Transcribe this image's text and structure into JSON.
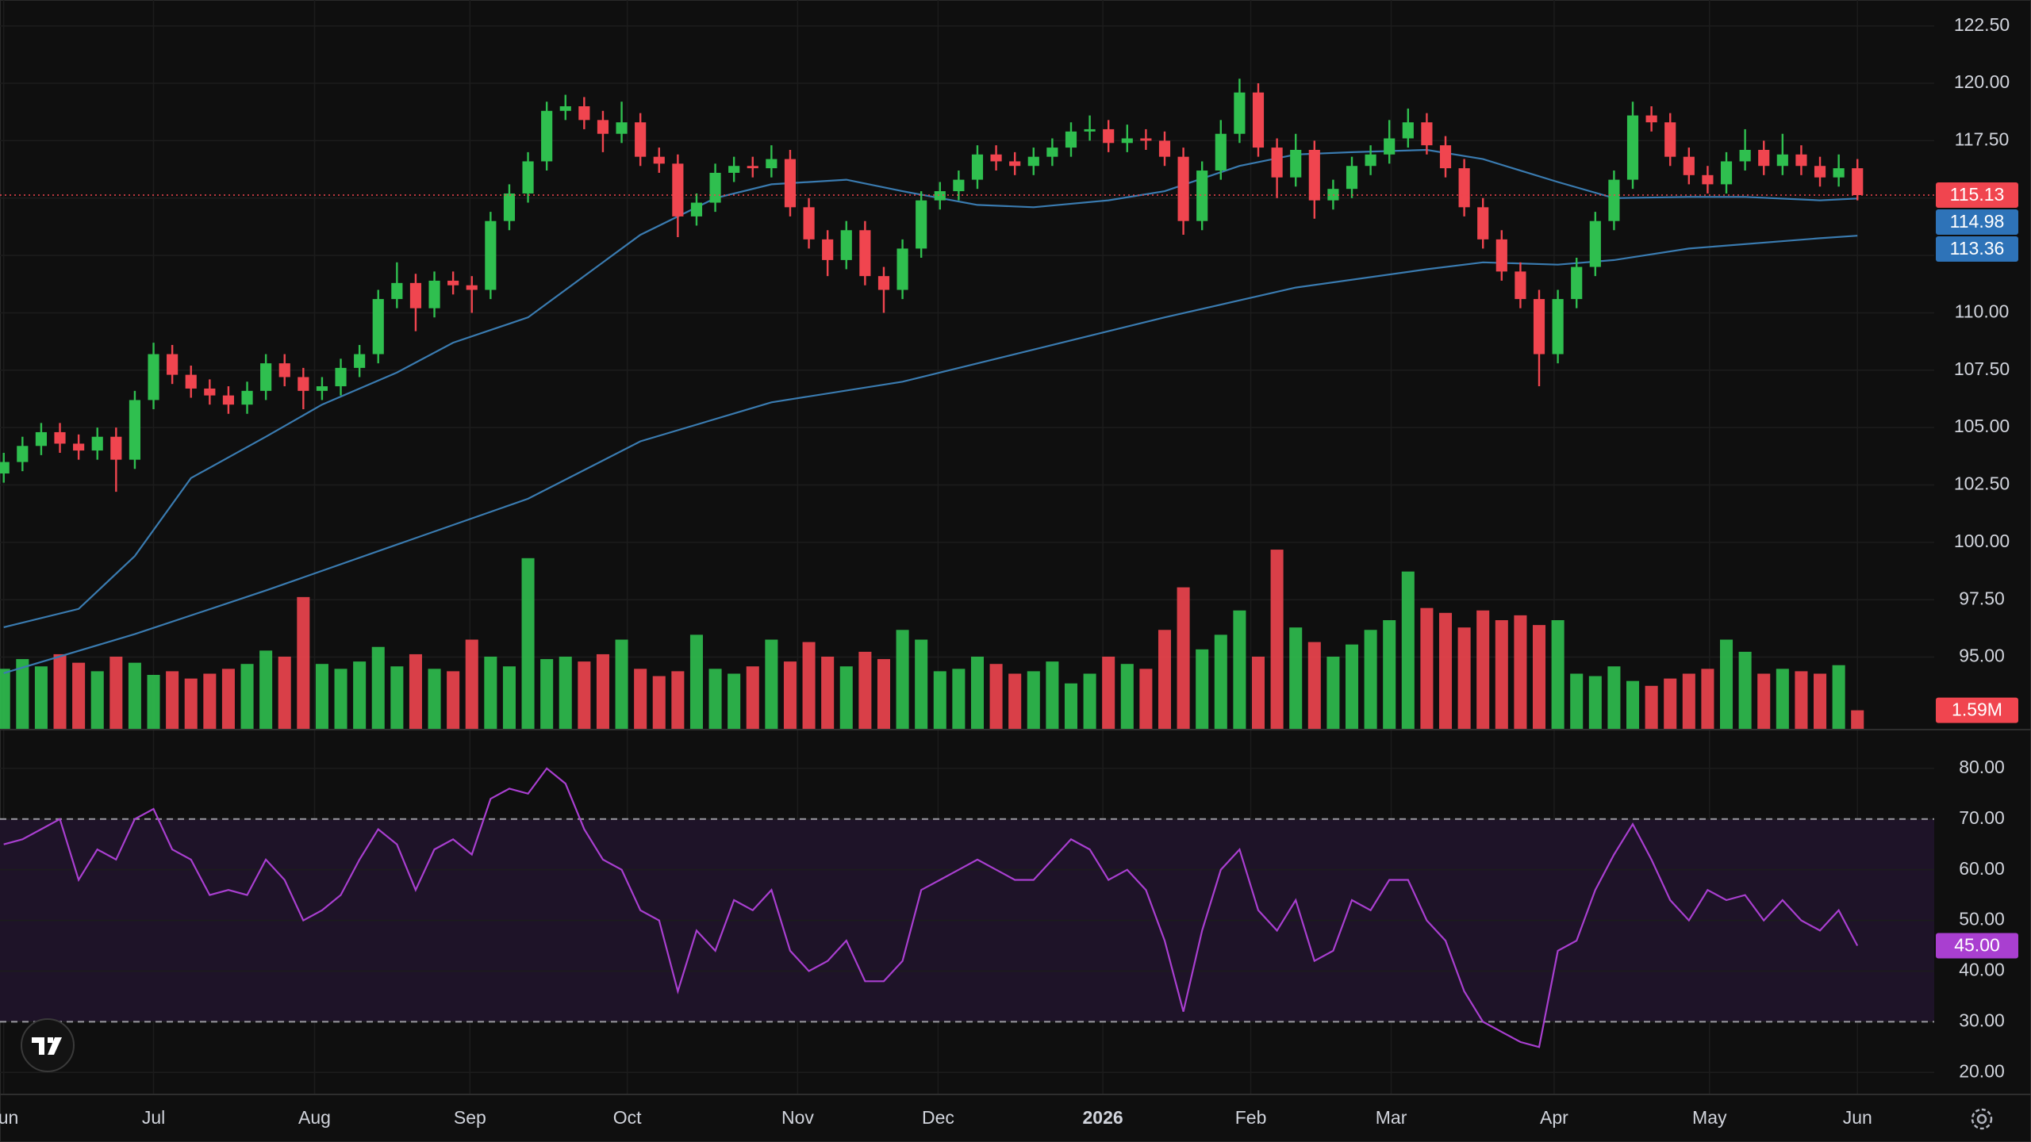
{
  "chart_data": {
    "type": "candlestick",
    "grid": true,
    "up_color": "#2fbf4f",
    "down_color": "#f0454f",
    "xlim": [
      -0.2,
      103.1
    ],
    "xticks": [
      {
        "value": 0,
        "label": "Jun"
      },
      {
        "value": 8.0,
        "label": "Jul"
      },
      {
        "value": 16.6,
        "label": "Aug"
      },
      {
        "value": 24.9,
        "label": "Sep"
      },
      {
        "value": 33.3,
        "label": "Oct"
      },
      {
        "value": 42.4,
        "label": "Nov"
      },
      {
        "value": 49.9,
        "label": "Dec"
      },
      {
        "value": 58.7,
        "label": "2026"
      },
      {
        "value": 66.6,
        "label": "Feb"
      },
      {
        "value": 74.1,
        "label": "Mar"
      },
      {
        "value": 82.8,
        "label": "Apr"
      },
      {
        "value": 91.1,
        "label": "May"
      },
      {
        "value": 99.0,
        "label": "Jun"
      }
    ],
    "ylim": [
      91.84,
      123.63
    ],
    "yticks": [
      {
        "value": 95,
        "label": "95.00"
      },
      {
        "value": 97.5,
        "label": "97.50"
      },
      {
        "value": 100,
        "label": "100.00"
      },
      {
        "value": 102.5,
        "label": "102.50"
      },
      {
        "value": 105,
        "label": "105.00"
      },
      {
        "value": 107.5,
        "label": "107.50"
      },
      {
        "value": 110,
        "label": "110.00"
      },
      {
        "value": 112.5,
        "label": "112.50"
      },
      {
        "value": 115,
        "label": "115.00"
      },
      {
        "value": 117.5,
        "label": "117.50"
      },
      {
        "value": 120,
        "label": "120.00"
      },
      {
        "value": 122.5,
        "label": "122.50"
      }
    ],
    "last_price_line": true,
    "candles": [
      [
        103.0,
        103.9,
        102.6,
        103.5
      ],
      [
        103.5,
        104.6,
        103.1,
        104.2
      ],
      [
        104.2,
        105.2,
        103.8,
        104.8
      ],
      [
        104.8,
        105.2,
        103.9,
        104.3
      ],
      [
        104.3,
        104.7,
        103.6,
        104.0
      ],
      [
        104.0,
        105.0,
        103.6,
        104.6
      ],
      [
        104.6,
        105.0,
        102.2,
        103.6
      ],
      [
        103.6,
        106.6,
        103.2,
        106.2
      ],
      [
        106.2,
        108.7,
        105.8,
        108.2
      ],
      [
        108.2,
        108.6,
        106.9,
        107.3
      ],
      [
        107.3,
        107.7,
        106.3,
        106.7
      ],
      [
        106.7,
        107.1,
        106.0,
        106.4
      ],
      [
        106.4,
        106.8,
        105.6,
        106.0
      ],
      [
        106.0,
        107.0,
        105.6,
        106.6
      ],
      [
        106.6,
        108.2,
        106.2,
        107.8
      ],
      [
        107.8,
        108.2,
        106.8,
        107.2
      ],
      [
        107.2,
        107.6,
        105.8,
        106.6
      ],
      [
        106.6,
        107.2,
        106.2,
        106.8
      ],
      [
        106.8,
        108.0,
        106.4,
        107.6
      ],
      [
        107.6,
        108.6,
        107.2,
        108.2
      ],
      [
        108.2,
        111.0,
        107.8,
        110.6
      ],
      [
        110.6,
        112.2,
        110.2,
        111.3
      ],
      [
        111.3,
        111.7,
        109.2,
        110.2
      ],
      [
        110.2,
        111.8,
        109.8,
        111.4
      ],
      [
        111.4,
        111.8,
        110.8,
        111.2
      ],
      [
        111.2,
        111.6,
        110.0,
        111.0
      ],
      [
        111.0,
        114.4,
        110.6,
        114.0
      ],
      [
        114.0,
        115.6,
        113.6,
        115.2
      ],
      [
        115.2,
        117.0,
        114.8,
        116.6
      ],
      [
        116.6,
        119.2,
        116.2,
        118.8
      ],
      [
        118.8,
        119.5,
        118.4,
        119.0
      ],
      [
        119.0,
        119.4,
        118.0,
        118.4
      ],
      [
        118.4,
        118.8,
        117.0,
        117.8
      ],
      [
        117.8,
        119.2,
        117.4,
        118.3
      ],
      [
        118.3,
        118.7,
        116.4,
        116.8
      ],
      [
        116.8,
        117.2,
        116.1,
        116.5
      ],
      [
        116.5,
        116.9,
        113.3,
        114.2
      ],
      [
        114.2,
        115.2,
        113.8,
        114.8
      ],
      [
        114.8,
        116.5,
        114.4,
        116.1
      ],
      [
        116.1,
        116.8,
        115.7,
        116.4
      ],
      [
        116.4,
        116.8,
        115.9,
        116.3
      ],
      [
        116.3,
        117.3,
        115.9,
        116.7
      ],
      [
        116.7,
        117.1,
        114.2,
        114.6
      ],
      [
        114.6,
        115.0,
        112.8,
        113.2
      ],
      [
        113.2,
        113.6,
        111.6,
        112.3
      ],
      [
        112.3,
        114.0,
        111.9,
        113.6
      ],
      [
        113.6,
        114.0,
        111.2,
        111.6
      ],
      [
        111.6,
        112.0,
        110.0,
        111.0
      ],
      [
        111.0,
        113.2,
        110.6,
        112.8
      ],
      [
        112.8,
        115.3,
        112.4,
        114.9
      ],
      [
        114.9,
        115.7,
        114.5,
        115.3
      ],
      [
        115.3,
        116.2,
        114.9,
        115.8
      ],
      [
        115.8,
        117.3,
        115.4,
        116.9
      ],
      [
        116.9,
        117.3,
        116.2,
        116.6
      ],
      [
        116.6,
        117.0,
        116.0,
        116.4
      ],
      [
        116.4,
        117.2,
        116.0,
        116.8
      ],
      [
        116.8,
        117.6,
        116.4,
        117.2
      ],
      [
        117.2,
        118.3,
        116.8,
        117.9
      ],
      [
        117.9,
        118.6,
        117.5,
        118.0
      ],
      [
        118.0,
        118.4,
        117.0,
        117.4
      ],
      [
        117.4,
        118.2,
        117.0,
        117.6
      ],
      [
        117.6,
        118.0,
        117.1,
        117.5
      ],
      [
        117.5,
        117.9,
        116.4,
        116.8
      ],
      [
        116.8,
        117.2,
        113.4,
        114.0
      ],
      [
        114.0,
        116.6,
        113.6,
        116.2
      ],
      [
        116.2,
        118.4,
        115.8,
        117.8
      ],
      [
        117.8,
        120.2,
        117.4,
        119.6
      ],
      [
        119.6,
        120.0,
        116.8,
        117.2
      ],
      [
        117.2,
        117.6,
        115.0,
        115.9
      ],
      [
        115.9,
        117.8,
        115.5,
        117.1
      ],
      [
        117.1,
        117.5,
        114.1,
        114.9
      ],
      [
        114.9,
        115.8,
        114.5,
        115.4
      ],
      [
        115.4,
        116.8,
        115.0,
        116.4
      ],
      [
        116.4,
        117.3,
        116.0,
        116.9
      ],
      [
        116.9,
        118.4,
        116.5,
        117.6
      ],
      [
        117.6,
        118.9,
        117.2,
        118.3
      ],
      [
        118.3,
        118.7,
        116.9,
        117.3
      ],
      [
        117.3,
        117.7,
        115.9,
        116.3
      ],
      [
        116.3,
        116.7,
        114.2,
        114.6
      ],
      [
        114.6,
        115.0,
        112.8,
        113.2
      ],
      [
        113.2,
        113.6,
        111.4,
        111.8
      ],
      [
        111.8,
        112.2,
        110.2,
        110.6
      ],
      [
        110.6,
        111.0,
        106.8,
        108.2
      ],
      [
        108.2,
        111.0,
        107.8,
        110.6
      ],
      [
        110.6,
        112.4,
        110.2,
        112.0
      ],
      [
        112.0,
        114.4,
        111.6,
        114.0
      ],
      [
        114.0,
        116.2,
        113.6,
        115.8
      ],
      [
        115.8,
        119.2,
        115.4,
        118.6
      ],
      [
        118.6,
        119.0,
        117.9,
        118.3
      ],
      [
        118.3,
        118.7,
        116.4,
        116.8
      ],
      [
        116.8,
        117.2,
        115.6,
        116.0
      ],
      [
        116.0,
        116.4,
        115.2,
        115.6
      ],
      [
        115.6,
        117.0,
        115.2,
        116.6
      ],
      [
        116.6,
        118.0,
        116.2,
        117.1
      ],
      [
        117.1,
        117.5,
        116.0,
        116.4
      ],
      [
        116.4,
        117.8,
        116.0,
        116.9
      ],
      [
        116.9,
        117.3,
        116.0,
        116.4
      ],
      [
        116.4,
        116.8,
        115.5,
        115.9
      ],
      [
        115.9,
        116.9,
        115.5,
        116.3
      ],
      [
        116.3,
        116.7,
        114.9,
        115.13
      ]
    ],
    "series": [
      {
        "color": "#3a7bb0",
        "label_color": "#2e73b8",
        "x": [
          0,
          4,
          7,
          10,
          14,
          17,
          21,
          24,
          28,
          31,
          34,
          38,
          41,
          45,
          48,
          52,
          55,
          59,
          62,
          66,
          69,
          72,
          76,
          79,
          83,
          86,
          90,
          93,
          97,
          99
        ],
        "values": [
          96.3,
          97.1,
          99.4,
          102.8,
          104.6,
          106.0,
          107.4,
          108.7,
          109.8,
          111.6,
          113.4,
          115.0,
          115.6,
          115.8,
          115.3,
          114.7,
          114.6,
          114.9,
          115.3,
          116.4,
          116.9,
          117.0,
          117.1,
          116.7,
          115.7,
          115.0,
          115.05,
          115.05,
          114.9,
          114.98
        ],
        "value_labels": [
          null,
          null,
          null,
          null,
          null,
          null,
          null,
          null,
          null,
          null,
          null,
          null,
          null,
          null,
          null,
          null,
          null,
          null,
          null,
          null,
          null,
          null,
          null,
          null,
          null,
          null,
          null,
          null,
          null,
          "114.98"
        ]
      },
      {
        "color": "#3a7bb0",
        "label_color": "#2e73b8",
        "x": [
          0,
          7,
          14,
          21,
          28,
          34,
          41,
          48,
          55,
          62,
          69,
          76,
          79,
          83,
          86,
          90,
          97,
          99
        ],
        "values": [
          94.3,
          96.0,
          97.9,
          99.9,
          101.9,
          104.4,
          106.1,
          107.0,
          108.4,
          109.8,
          111.1,
          111.9,
          112.2,
          112.1,
          112.3,
          112.8,
          113.25,
          113.36
        ],
        "value_labels": [
          null,
          null,
          null,
          null,
          null,
          null,
          null,
          null,
          null,
          null,
          null,
          null,
          null,
          null,
          null,
          null,
          null,
          "113.36"
        ]
      }
    ],
    "volume": {
      "ylim": [
        0,
        60
      ],
      "values": [
        5.0,
        5.8,
        5.2,
        6.2,
        5.5,
        4.8,
        6.0,
        5.5,
        4.5,
        4.8,
        4.2,
        4.6,
        5.0,
        5.4,
        6.5,
        6.0,
        10.9,
        5.4,
        5.0,
        5.6,
        6.8,
        5.2,
        6.2,
        5.0,
        4.8,
        7.4,
        6.0,
        5.2,
        14.1,
        5.8,
        6.0,
        5.6,
        6.2,
        7.4,
        5.0,
        4.4,
        4.8,
        7.8,
        5.0,
        4.6,
        5.2,
        7.4,
        5.6,
        7.2,
        6.0,
        5.2,
        6.4,
        5.8,
        8.2,
        7.4,
        4.8,
        5.0,
        6.0,
        5.4,
        4.6,
        4.8,
        5.6,
        3.8,
        4.6,
        6.0,
        5.4,
        5.0,
        8.2,
        11.7,
        6.6,
        7.8,
        9.8,
        6.0,
        14.8,
        8.4,
        7.2,
        6.0,
        7.0,
        8.2,
        9.0,
        13.0,
        10.0,
        9.6,
        8.4,
        9.8,
        9.0,
        9.4,
        8.6,
        9.0,
        4.6,
        4.4,
        5.2,
        4.0,
        3.6,
        4.2,
        4.6,
        5.0,
        7.4,
        6.4,
        4.6,
        5.0,
        4.8,
        4.6,
        5.3,
        1.59
      ],
      "value_labels": [
        null,
        null,
        null,
        null,
        null,
        null,
        null,
        null,
        null,
        null,
        null,
        null,
        null,
        null,
        null,
        null,
        null,
        null,
        null,
        null,
        null,
        null,
        null,
        null,
        null,
        null,
        null,
        null,
        null,
        null,
        null,
        null,
        null,
        null,
        null,
        null,
        null,
        null,
        null,
        null,
        null,
        null,
        null,
        null,
        null,
        null,
        null,
        null,
        null,
        null,
        null,
        null,
        null,
        null,
        null,
        null,
        null,
        null,
        null,
        null,
        null,
        null,
        null,
        null,
        null,
        null,
        null,
        null,
        null,
        null,
        null,
        null,
        null,
        null,
        null,
        null,
        null,
        null,
        null,
        null,
        null,
        null,
        null,
        null,
        null,
        null,
        null,
        null,
        null,
        null,
        null,
        null,
        null,
        null,
        null,
        null,
        null,
        null,
        null,
        "1.59M"
      ]
    },
    "rsi": {
      "color": "#a93fd0",
      "band_color": "#1e1328",
      "ylim": [
        15.66,
        87.65
      ],
      "yticks": [
        {
          "value": 20,
          "label": "20.00"
        },
        {
          "value": 30,
          "label": "30.00"
        },
        {
          "value": 40,
          "label": "40.00"
        },
        {
          "value": 50,
          "label": "50.00"
        },
        {
          "value": 60,
          "label": "60.00"
        },
        {
          "value": 70,
          "label": "70.00"
        },
        {
          "value": 80,
          "label": "80.00"
        }
      ],
      "levels": [
        30,
        70
      ],
      "values": [
        65,
        66,
        68,
        70,
        58,
        64,
        62,
        70,
        72,
        64,
        62,
        55,
        56,
        55,
        62,
        58,
        50,
        52,
        55,
        62,
        68,
        65,
        56,
        64,
        66,
        63,
        74,
        76,
        75,
        80,
        77,
        68,
        62,
        60,
        52,
        50,
        36,
        48,
        44,
        54,
        52,
        56,
        44,
        40,
        42,
        46,
        38,
        38,
        42,
        56,
        58,
        60,
        62,
        60,
        58,
        58,
        62,
        66,
        64,
        58,
        60,
        56,
        46,
        32,
        48,
        60,
        64,
        52,
        48,
        54,
        42,
        44,
        54,
        52,
        58,
        58,
        50,
        46,
        36,
        30,
        28,
        26,
        25,
        44,
        46,
        56,
        63,
        69,
        62,
        54,
        50,
        56,
        54,
        55,
        50,
        54,
        50,
        48,
        52,
        45
      ],
      "value_labels": [
        null,
        null,
        null,
        null,
        null,
        null,
        null,
        null,
        null,
        null,
        null,
        null,
        null,
        null,
        null,
        null,
        null,
        null,
        null,
        null,
        null,
        null,
        null,
        null,
        null,
        null,
        null,
        null,
        null,
        null,
        null,
        null,
        null,
        null,
        null,
        null,
        null,
        null,
        null,
        null,
        null,
        null,
        null,
        null,
        null,
        null,
        null,
        null,
        null,
        null,
        null,
        null,
        null,
        null,
        null,
        null,
        null,
        null,
        null,
        null,
        null,
        null,
        null,
        null,
        null,
        null,
        null,
        null,
        null,
        null,
        null,
        null,
        null,
        null,
        null,
        null,
        null,
        null,
        null,
        null,
        null,
        null,
        null,
        null,
        null,
        null,
        null,
        null,
        null,
        null,
        null,
        null,
        null,
        null,
        null,
        null,
        null,
        null,
        null,
        "45.00"
      ]
    }
  }
}
